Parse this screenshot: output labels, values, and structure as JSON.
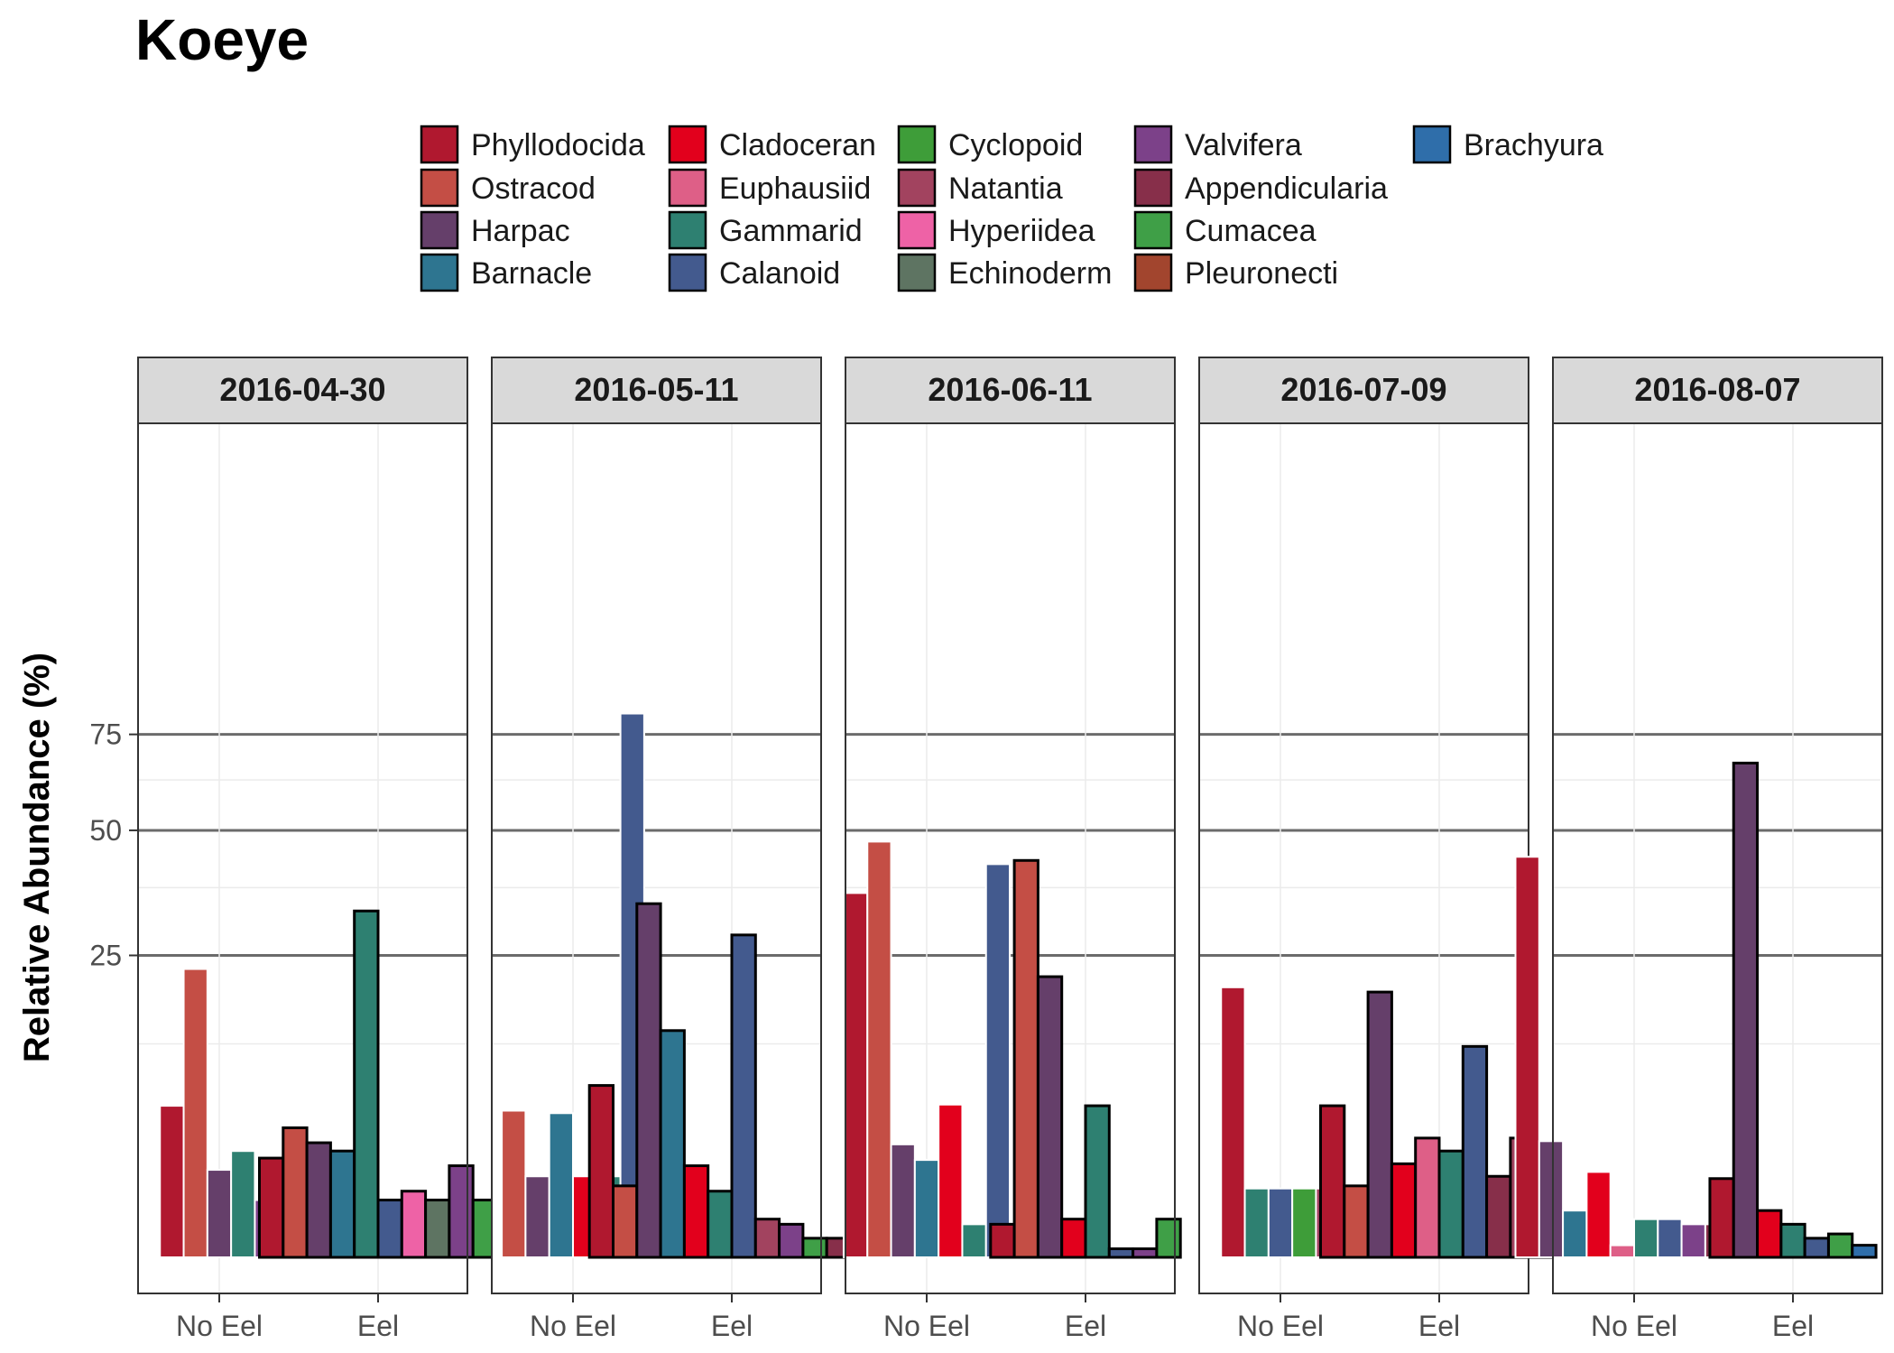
{
  "chart_data": {
    "type": "bar",
    "title": "Koeye",
    "ylabel": "Relative Abundance (%)",
    "xlabel": "",
    "y_scale": "sqrt",
    "y_ticks": [
      25,
      50,
      75
    ],
    "ylim": [
      0,
      88
    ],
    "grid": true,
    "legend_position": "top",
    "legend": [
      {
        "name": "Phyllodocida",
        "color": "#B0182F"
      },
      {
        "name": "Ostracod",
        "color": "#C44E45"
      },
      {
        "name": "Harpac",
        "color": "#653F6A"
      },
      {
        "name": "Barnacle",
        "color": "#2E7590"
      },
      {
        "name": "Cladoceran",
        "color": "#E2001C"
      },
      {
        "name": "Euphausiid",
        "color": "#DE5F87"
      },
      {
        "name": "Gammarid",
        "color": "#2E8071"
      },
      {
        "name": "Calanoid",
        "color": "#435A8E"
      },
      {
        "name": "Cyclopoid",
        "color": "#3E9D39"
      },
      {
        "name": "Natantia",
        "color": "#A2435F"
      },
      {
        "name": "Hyperiidea",
        "color": "#EE62A6"
      },
      {
        "name": "Echinoderm",
        "color": "#5E7462"
      },
      {
        "name": "Valvifera",
        "color": "#7C4189"
      },
      {
        "name": "Appendicularia",
        "color": "#872F4A"
      },
      {
        "name": "Cumacea",
        "color": "#3F9F47"
      },
      {
        "name": "Pleuronecti",
        "color": "#A2452E"
      },
      {
        "name": "Brachyura",
        "color": "#2F6EAA"
      }
    ],
    "categories": [
      "No Eel",
      "Eel"
    ],
    "panels": [
      {
        "date": "2016-04-30",
        "no_eel": [
          {
            "taxon": "Phyllodocida",
            "value": 6.3
          },
          {
            "taxon": "Ostracod",
            "value": 22.8
          },
          {
            "taxon": "Harpac",
            "value": 2.1
          },
          {
            "taxon": "Gammarid",
            "value": 3.1
          },
          {
            "taxon": "Valvifera",
            "value": 0.9
          }
        ],
        "eel": [
          {
            "taxon": "Phyllodocida",
            "value": 2.7
          },
          {
            "taxon": "Ostracod",
            "value": 4.6
          },
          {
            "taxon": "Harpac",
            "value": 3.6
          },
          {
            "taxon": "Barnacle",
            "value": 3.1
          },
          {
            "taxon": "Gammarid",
            "value": 32.9
          },
          {
            "taxon": "Calanoid",
            "value": 0.9
          },
          {
            "taxon": "Hyperiidea",
            "value": 1.2
          },
          {
            "taxon": "Echinoderm",
            "value": 0.9
          },
          {
            "taxon": "Valvifera",
            "value": 2.3
          },
          {
            "taxon": "Cumacea",
            "value": 0.9
          }
        ]
      },
      {
        "date": "2016-05-11",
        "no_eel": [
          {
            "taxon": "Ostracod",
            "value": 5.9
          },
          {
            "taxon": "Harpac",
            "value": 1.8
          },
          {
            "taxon": "Barnacle",
            "value": 5.7
          },
          {
            "taxon": "Cladoceran",
            "value": 1.8
          },
          {
            "taxon": "Gammarid",
            "value": 1.8
          },
          {
            "taxon": "Calanoid",
            "value": 81.1
          }
        ],
        "eel": [
          {
            "taxon": "Phyllodocida",
            "value": 8.1
          },
          {
            "taxon": "Ostracod",
            "value": 1.4
          },
          {
            "taxon": "Harpac",
            "value": 34.3
          },
          {
            "taxon": "Barnacle",
            "value": 14.1
          },
          {
            "taxon": "Cladoceran",
            "value": 2.3
          },
          {
            "taxon": "Gammarid",
            "value": 1.2
          },
          {
            "taxon": "Calanoid",
            "value": 28.5
          },
          {
            "taxon": "Natantia",
            "value": 0.4
          },
          {
            "taxon": "Valvifera",
            "value": 0.3
          },
          {
            "taxon": "Cumacea",
            "value": 0.1
          },
          {
            "taxon": "Appendicularia",
            "value": 0.1
          },
          {
            "taxon": "Brachyura",
            "value": 0.1
          }
        ]
      },
      {
        "date": "2016-06-11",
        "no_eel": [
          {
            "taxon": "Phyllodocida",
            "value": 36.4
          },
          {
            "taxon": "Ostracod",
            "value": 47.4
          },
          {
            "taxon": "Harpac",
            "value": 3.5
          },
          {
            "taxon": "Barnacle",
            "value": 2.6
          },
          {
            "taxon": "Cladoceran",
            "value": 6.4
          },
          {
            "taxon": "Gammarid",
            "value": 0.3
          },
          {
            "taxon": "Calanoid",
            "value": 42.4
          }
        ],
        "eel": [
          {
            "taxon": "Phyllodocida",
            "value": 0.3
          },
          {
            "taxon": "Ostracod",
            "value": 43.2
          },
          {
            "taxon": "Harpac",
            "value": 21.6
          },
          {
            "taxon": "Cladoceran",
            "value": 0.4
          },
          {
            "taxon": "Gammarid",
            "value": 6.3
          },
          {
            "taxon": "Calanoid",
            "value": 0.02
          },
          {
            "taxon": "Valvifera",
            "value": 0.02
          },
          {
            "taxon": "Cumacea",
            "value": 0.4
          }
        ]
      },
      {
        "date": "2016-07-09",
        "no_eel": [
          {
            "taxon": "Phyllodocida",
            "value": 20.0
          },
          {
            "taxon": "Gammarid",
            "value": 1.3
          },
          {
            "taxon": "Calanoid",
            "value": 1.3
          },
          {
            "taxon": "Cyclopoid",
            "value": 1.3
          },
          {
            "taxon": "Natantia",
            "value": 1.3
          }
        ],
        "eel": [
          {
            "taxon": "Phyllodocida",
            "value": 6.3
          },
          {
            "taxon": "Ostracod",
            "value": 1.4
          },
          {
            "taxon": "Harpac",
            "value": 19.3
          },
          {
            "taxon": "Cladoceran",
            "value": 2.4
          },
          {
            "taxon": "Euphausiid",
            "value": 3.9
          },
          {
            "taxon": "Gammarid",
            "value": 3.1
          },
          {
            "taxon": "Calanoid",
            "value": 12.2
          },
          {
            "taxon": "Appendicularia",
            "value": 1.8
          },
          {
            "taxon": "Natantia",
            "value": 3.9
          },
          {
            "taxon": "Cumacea",
            "value": 3.1
          }
        ]
      },
      {
        "date": "2016-08-07",
        "no_eel": [
          {
            "taxon": "Phyllodocida",
            "value": 44.0
          },
          {
            "taxon": "Harpac",
            "value": 3.7
          },
          {
            "taxon": "Barnacle",
            "value": 0.6
          },
          {
            "taxon": "Cladoceran",
            "value": 2.0
          },
          {
            "taxon": "Euphausiid",
            "value": 0.04
          },
          {
            "taxon": "Gammarid",
            "value": 0.4
          },
          {
            "taxon": "Calanoid",
            "value": 0.4
          },
          {
            "taxon": "Valvifera",
            "value": 0.3
          },
          {
            "taxon": "Appendicularia",
            "value": 0.3
          },
          {
            "taxon": "Cumacea",
            "value": 0.3
          }
        ],
        "eel": [
          {
            "taxon": "Phyllodocida",
            "value": 1.7
          },
          {
            "taxon": "Harpac",
            "value": 67.0
          },
          {
            "taxon": "Cladoceran",
            "value": 0.6
          },
          {
            "taxon": "Gammarid",
            "value": 0.3
          },
          {
            "taxon": "Calanoid",
            "value": 0.1
          },
          {
            "taxon": "Cumacea",
            "value": 0.15
          },
          {
            "taxon": "Brachyura",
            "value": 0.04
          }
        ]
      }
    ]
  }
}
